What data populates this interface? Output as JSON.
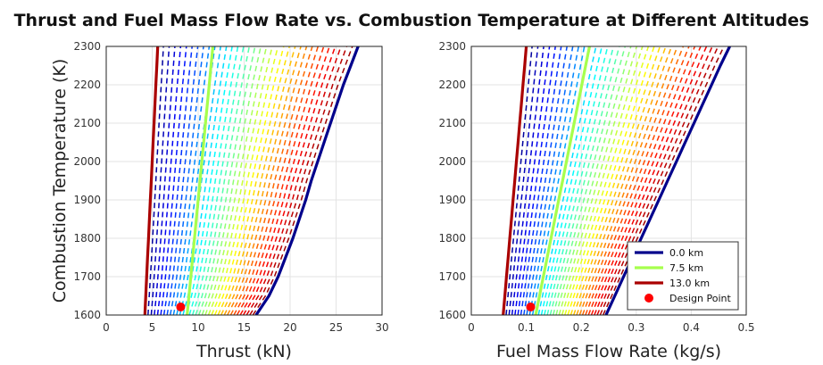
{
  "title": "Thrust and Fuel Mass Flow Rate vs. Combustion Temperature at Different Altitudes",
  "chart_data": [
    {
      "type": "line",
      "xlabel": "Thrust (kN)",
      "ylabel": "Combustion Temperature (K)",
      "xlim": [
        0,
        30
      ],
      "ylim": [
        1600,
        2300
      ],
      "xticks": [
        "0",
        "5",
        "10",
        "15",
        "20",
        "25",
        "30"
      ],
      "yticks": [
        "1600",
        "1700",
        "1800",
        "1900",
        "2000",
        "2100",
        "2200",
        "2300"
      ],
      "grid": true,
      "y": [
        1600,
        1650,
        1700,
        1750,
        1800,
        1850,
        1900,
        1950,
        2000,
        2050,
        2100,
        2150,
        2200,
        2250,
        2300
      ],
      "series": [
        {
          "name": "0.0 km",
          "color": "#00008c",
          "style": "solid",
          "x": [
            16.3,
            17.7,
            18.7,
            19.5,
            20.3,
            21.0,
            21.7,
            22.3,
            23.0,
            23.7,
            24.4,
            25.1,
            25.8,
            26.6,
            27.4
          ]
        },
        {
          "name": "7.5 km",
          "color": "#a6ff4d",
          "style": "solid",
          "x": [
            8.8,
            9.0,
            9.2,
            9.4,
            9.6,
            9.8,
            10.0,
            10.2,
            10.4,
            10.6,
            10.8,
            11.0,
            11.2,
            11.4,
            11.6
          ]
        },
        {
          "name": "13.0 km",
          "color": "#aa0000",
          "style": "solid",
          "x": [
            4.2,
            4.3,
            4.4,
            4.5,
            4.6,
            4.7,
            4.8,
            4.9,
            5.0,
            5.1,
            5.2,
            5.3,
            5.4,
            5.5,
            5.6
          ]
        }
      ],
      "design_point": {
        "name": "Design Point",
        "x": 8.1,
        "y": 1621,
        "color": "#ff0000"
      }
    },
    {
      "type": "line",
      "xlabel": "Fuel Mass Flow Rate (kg/s)",
      "xlim": [
        0,
        0.5
      ],
      "ylim": [
        1600,
        2300
      ],
      "xticks": [
        "0",
        "0.1",
        "0.2",
        "0.3",
        "0.4",
        "0.5"
      ],
      "yticks": [
        "1600",
        "1700",
        "1800",
        "1900",
        "2000",
        "2100",
        "2200",
        "2300"
      ],
      "grid": true,
      "legend": "bottom-right",
      "y": [
        1600,
        1650,
        1700,
        1750,
        1800,
        1850,
        1900,
        1950,
        2000,
        2050,
        2100,
        2150,
        2200,
        2250,
        2300
      ],
      "series": [
        {
          "name": "0.0 km",
          "color": "#00008c",
          "style": "solid",
          "x": [
            0.245,
            0.261,
            0.277,
            0.293,
            0.309,
            0.325,
            0.341,
            0.357,
            0.373,
            0.389,
            0.405,
            0.421,
            0.437,
            0.453,
            0.47
          ]
        },
        {
          "name": "7.5 km",
          "color": "#a6ff4d",
          "style": "solid",
          "x": [
            0.117,
            0.124,
            0.131,
            0.138,
            0.145,
            0.152,
            0.159,
            0.166,
            0.173,
            0.18,
            0.187,
            0.194,
            0.201,
            0.208,
            0.215
          ]
        },
        {
          "name": "13.0 km",
          "color": "#aa0000",
          "style": "solid",
          "x": [
            0.058,
            0.061,
            0.064,
            0.067,
            0.07,
            0.073,
            0.076,
            0.079,
            0.082,
            0.085,
            0.088,
            0.091,
            0.094,
            0.097,
            0.1
          ]
        }
      ],
      "design_point": {
        "name": "Design Point",
        "x": 0.108,
        "y": 1621,
        "color": "#ff0000"
      }
    }
  ],
  "legend": {
    "items": [
      {
        "label": "0.0 km",
        "color": "#00008c",
        "marker": "line"
      },
      {
        "label": "7.5 km",
        "color": "#a6ff4d",
        "marker": "line"
      },
      {
        "label": "13.0 km",
        "color": "#aa0000",
        "marker": "line"
      },
      {
        "label": "Design Point",
        "color": "#ff0000",
        "marker": "dot"
      }
    ]
  },
  "altitude_bands": {
    "count": 35,
    "style": "dashed",
    "colormap": "jet"
  }
}
